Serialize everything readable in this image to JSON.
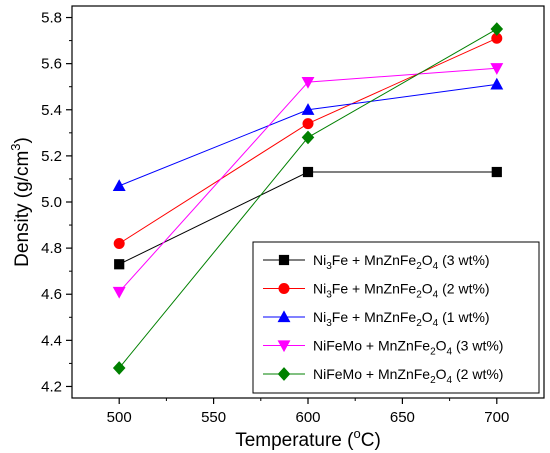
{
  "chart_data": {
    "type": "line",
    "title": "",
    "xlabel": {
      "main": "Temperature (",
      "sup": "o",
      "tail": "C)"
    },
    "ylabel": {
      "main": "Density (g/cm",
      "sup": "3",
      "tail": ")"
    },
    "xlim": [
      475,
      725
    ],
    "ylim": [
      4.15,
      5.85
    ],
    "x_ticks": [
      500,
      550,
      600,
      650,
      700
    ],
    "y_ticks": [
      4.2,
      4.4,
      4.6,
      4.8,
      5.0,
      5.2,
      5.4,
      5.6,
      5.8
    ],
    "x_tick_labels": [
      "500",
      "550",
      "600",
      "650",
      "700"
    ],
    "y_tick_labels": [
      "4.2",
      "4.4",
      "4.6",
      "4.8",
      "5.0",
      "5.2",
      "5.4",
      "5.6",
      "5.8"
    ],
    "grid": false,
    "legend_position": "bottom-right",
    "x": [
      500,
      600,
      700
    ],
    "series": [
      {
        "name_parts": [
          {
            "t": "Ni"
          },
          {
            "t": "3",
            "sub": true
          },
          {
            "t": "Fe + MnZnFe"
          },
          {
            "t": "2",
            "sub": true
          },
          {
            "t": "O"
          },
          {
            "t": "4",
            "sub": true
          },
          {
            "t": " (3 wt%)"
          }
        ],
        "values": [
          4.73,
          5.13,
          5.13
        ],
        "color": "#000000",
        "marker": "square"
      },
      {
        "name_parts": [
          {
            "t": "Ni"
          },
          {
            "t": "3",
            "sub": true
          },
          {
            "t": "Fe + MnZnFe"
          },
          {
            "t": "2",
            "sub": true
          },
          {
            "t": "O"
          },
          {
            "t": "4",
            "sub": true
          },
          {
            "t": " (2 wt%)"
          }
        ],
        "values": [
          4.82,
          5.34,
          5.71
        ],
        "color": "#ff0000",
        "marker": "circle"
      },
      {
        "name_parts": [
          {
            "t": "Ni"
          },
          {
            "t": "3",
            "sub": true
          },
          {
            "t": "Fe + MnZnFe"
          },
          {
            "t": "2",
            "sub": true
          },
          {
            "t": "O"
          },
          {
            "t": "4",
            "sub": true
          },
          {
            "t": " (1 wt%)"
          }
        ],
        "values": [
          5.07,
          5.4,
          5.51
        ],
        "color": "#0000ff",
        "marker": "triangle-up"
      },
      {
        "name_parts": [
          {
            "t": "NiFeMo + MnZnFe"
          },
          {
            "t": "2",
            "sub": true
          },
          {
            "t": "O"
          },
          {
            "t": "4",
            "sub": true
          },
          {
            "t": " (3 wt%)"
          }
        ],
        "values": [
          4.61,
          5.52,
          5.58
        ],
        "color": "#ff00ff",
        "marker": "triangle-down"
      },
      {
        "name_parts": [
          {
            "t": "NiFeMo + MnZnFe"
          },
          {
            "t": "2",
            "sub": true
          },
          {
            "t": "O"
          },
          {
            "t": "4",
            "sub": true
          },
          {
            "t": " (2 wt%)"
          }
        ],
        "values": [
          4.28,
          5.28,
          5.75
        ],
        "color": "#008000",
        "marker": "diamond"
      }
    ]
  }
}
